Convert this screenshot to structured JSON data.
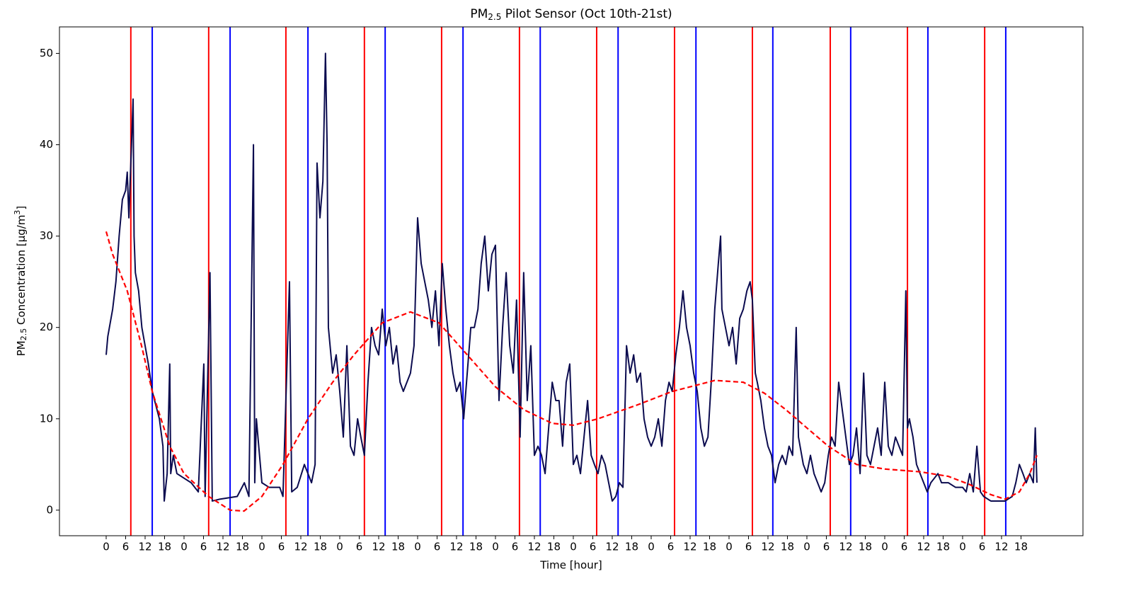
{
  "chart_data": {
    "type": "line",
    "title": [
      "PM",
      "2.5",
      " Pilot Sensor (Oct 10th-21st)"
    ],
    "x_label": "Time [hour]",
    "y_label": [
      "PM",
      "2.5",
      " Concentration [μg/m",
      "3",
      "]"
    ],
    "xlim": [
      -14.4,
      301.1
    ],
    "ylim": [
      -2.8,
      52.9
    ],
    "yticks": [
      0,
      10,
      20,
      30,
      40,
      50
    ],
    "xticks": [
      0,
      6,
      12,
      18,
      {
        "value": 24,
        "label": "0"
      },
      {
        "value": 30,
        "label": "6"
      },
      {
        "value": 36,
        "label": "12"
      },
      {
        "value": 42,
        "label": "18"
      },
      {
        "value": 48,
        "label": "0"
      },
      {
        "value": 54,
        "label": "6"
      },
      {
        "value": 60,
        "label": "12"
      },
      {
        "value": 66,
        "label": "18"
      },
      {
        "value": 72,
        "label": "0"
      },
      {
        "value": 78,
        "label": "6"
      },
      {
        "value": 84,
        "label": "12"
      },
      {
        "value": 90,
        "label": "18"
      },
      {
        "value": 96,
        "label": "0"
      },
      {
        "value": 102,
        "label": "6"
      },
      {
        "value": 108,
        "label": "12"
      },
      {
        "value": 114,
        "label": "18"
      },
      {
        "value": 120,
        "label": "0"
      },
      {
        "value": 126,
        "label": "6"
      },
      {
        "value": 132,
        "label": "12"
      },
      {
        "value": 138,
        "label": "18"
      },
      {
        "value": 144,
        "label": "0"
      },
      {
        "value": 150,
        "label": "6"
      },
      {
        "value": 156,
        "label": "12"
      },
      {
        "value": 162,
        "label": "18"
      },
      {
        "value": 168,
        "label": "0"
      },
      {
        "value": 174,
        "label": "6"
      },
      {
        "value": 180,
        "label": "12"
      },
      {
        "value": 186,
        "label": "18"
      },
      {
        "value": 192,
        "label": "0"
      },
      {
        "value": 198,
        "label": "6"
      },
      {
        "value": 204,
        "label": "12"
      },
      {
        "value": 210,
        "label": "18"
      },
      {
        "value": 216,
        "label": "0"
      },
      {
        "value": 222,
        "label": "6"
      },
      {
        "value": 228,
        "label": "12"
      },
      {
        "value": 234,
        "label": "18"
      },
      {
        "value": 240,
        "label": "0"
      },
      {
        "value": 246,
        "label": "6"
      },
      {
        "value": 252,
        "label": "12"
      },
      {
        "value": 258,
        "label": "18"
      },
      {
        "value": 264,
        "label": "0"
      },
      {
        "value": 270,
        "label": "6"
      },
      {
        "value": 276,
        "label": "12"
      },
      {
        "value": 282,
        "label": "18"
      }
    ],
    "grid": false,
    "vlines": [
      {
        "color": "#ff0000",
        "x": [
          7.6,
          31.6,
          55.4,
          79.6,
          103.4,
          127.4,
          151.2,
          175.2,
          199.2,
          223.2,
          247.0,
          270.8
        ]
      },
      {
        "color": "#0000ff",
        "x": [
          14.2,
          38.2,
          62.2,
          86.0,
          110.0,
          133.8,
          157.8,
          181.8,
          205.5,
          229.5,
          253.3,
          277.3
        ]
      }
    ],
    "series": [
      {
        "color": "#0b0b4f",
        "linestyle": "solid",
        "x": [
          0,
          0.5,
          1,
          2,
          3,
          4,
          5,
          6,
          6.5,
          7,
          7.6,
          8.3,
          8.6,
          9,
          10,
          11,
          12,
          13,
          14.2,
          16.4,
          17.5,
          17.9,
          18.8,
          19.6,
          19.9,
          20.7,
          21.8,
          24,
          26.2,
          28.4,
          30.1,
          30.5,
          32,
          32.7,
          35,
          40.4,
          42.6,
          44,
          45.4,
          45.8,
          46.3,
          48,
          50.2,
          53.5,
          54.5,
          56.5,
          57.2,
          58.9,
          61.1,
          63.3,
          64.4,
          65,
          65.9,
          66.8,
          67.6,
          68.1,
          68.5,
          69.8,
          70.9,
          72,
          73.1,
          74.2,
          75.3,
          76.4,
          77.5,
          78.5,
          79.6,
          80.7,
          81.8,
          82.9,
          84,
          85.1,
          86.2,
          87.3,
          88.4,
          89.5,
          90.6,
          91.6,
          92.7,
          93.8,
          94.9,
          96,
          97.1,
          98.2,
          99.3,
          100.4,
          101.5,
          102.6,
          103.6,
          104.7,
          105.8,
          106.9,
          108,
          109.1,
          110.2,
          111.3,
          112.4,
          113.5,
          114.6,
          115.6,
          116.7,
          117.8,
          118.9,
          120,
          121.1,
          122.2,
          123.3,
          124.4,
          125.5,
          126.5,
          127.6,
          128.7,
          129.8,
          130.9,
          132,
          133.1,
          134.2,
          135.3,
          136.4,
          137.5,
          138.6,
          139.6,
          140.7,
          141.8,
          142.9,
          144,
          145.1,
          146.2,
          147.3,
          148.4,
          149.5,
          150.5,
          151.6,
          152.7,
          153.8,
          154.9,
          156,
          157.1,
          158.2,
          159.3,
          160.4,
          161.5,
          162.6,
          163.6,
          164.7,
          165.8,
          166.9,
          168,
          169.1,
          170.2,
          171.3,
          172.4,
          173.5,
          174.5,
          175.6,
          176.7,
          177.8,
          178.9,
          180,
          181.1,
          182.2,
          183.3,
          184.4,
          185.5,
          186.5,
          187.6,
          188.7,
          189.4,
          189.8,
          190.9,
          192,
          193.1,
          194.2,
          195.3,
          196.4,
          197.5,
          198.5,
          199.2,
          200.1,
          200.7,
          201.8,
          202.9,
          204,
          205.1,
          206.2,
          207.3,
          208.4,
          209.5,
          210.5,
          211.6,
          212.7,
          213.4,
          214.9,
          216,
          217.1,
          218.2,
          219.3,
          220.4,
          221.5,
          222.6,
          223.6,
          224.7,
          225.8,
          226.9,
          228,
          229.1,
          230.2,
          231.3,
          232.4,
          233.5,
          234.5,
          235.6,
          236.7,
          237.8,
          238.9,
          240,
          241.1,
          242.2,
          243.3,
          244.4,
          245.5,
          246.5,
          247,
          247.6,
          248.7,
          249.8,
          250.9,
          252,
          253.1,
          254.2,
          255.3,
          256.4,
          257.5,
          259.6,
          261.8,
          264,
          265.1,
          266.2,
          267.3,
          268.4,
          269.5,
          270.5,
          272.7,
          274.9,
          277.1,
          279.3,
          280.4,
          281.5,
          282.6,
          283.6,
          284.7,
          285.8,
          286.4,
          286.9
        ],
        "values": [
          17,
          19,
          20,
          22,
          25,
          30,
          34,
          35,
          37,
          32,
          38,
          45,
          30,
          26,
          24,
          20,
          18,
          16,
          13,
          10,
          7,
          1,
          4,
          16,
          4,
          6,
          4,
          3.5,
          3,
          2,
          16,
          1.5,
          26,
          1,
          1.2,
          1.5,
          3,
          1.5,
          40,
          3,
          10,
          3,
          2.5,
          2.5,
          1.5,
          25,
          2,
          2.5,
          5,
          3,
          5,
          38,
          32,
          36,
          50,
          40,
          20,
          15,
          17,
          13,
          8,
          18,
          7,
          6,
          10,
          8,
          6,
          14,
          20,
          18,
          17,
          22,
          18,
          20,
          16,
          18,
          14,
          13,
          14,
          15,
          18,
          32,
          27,
          25,
          23,
          20,
          24,
          18,
          27,
          22,
          18,
          15,
          13,
          14,
          10,
          15,
          20,
          20,
          22,
          27,
          30,
          24,
          28,
          29,
          12,
          20,
          26,
          18,
          15,
          23,
          8,
          26,
          12,
          18,
          6,
          7,
          6,
          4,
          9,
          14,
          12,
          12,
          7,
          14,
          16,
          5,
          6,
          4,
          8,
          12,
          6,
          5,
          4,
          6,
          5,
          3,
          1,
          1.5,
          3,
          2.5,
          18,
          15,
          17,
          14,
          15,
          10,
          8,
          7,
          8,
          10,
          7,
          12,
          14,
          13,
          17,
          20,
          24,
          20,
          18,
          15,
          13,
          9,
          7,
          8,
          14,
          22,
          27,
          30,
          22,
          20,
          18,
          20,
          16,
          21,
          22,
          24,
          25,
          23,
          15,
          14,
          12,
          9,
          7,
          6,
          3,
          5,
          6,
          5,
          7,
          6,
          20,
          8,
          5,
          4,
          6,
          4,
          3,
          2,
          3,
          6,
          8,
          7,
          14,
          11,
          8,
          5,
          6,
          9,
          4,
          15,
          6,
          5,
          7,
          9,
          6,
          14,
          7,
          6,
          8,
          7,
          6,
          24,
          9,
          10,
          8,
          5,
          4,
          3,
          2,
          3,
          3.5,
          4,
          3,
          3,
          2.5,
          2.5,
          2,
          4,
          2,
          7,
          2,
          1.5,
          1,
          1,
          1,
          1.5,
          3,
          5,
          4,
          3,
          4,
          3,
          9,
          3
        ]
      },
      {
        "color": "#ff0000",
        "linestyle": "dashed",
        "x": [
          0,
          2,
          6.5,
          10.9,
          14.2,
          19.6,
          24,
          31.6,
          38.2,
          42.5,
          48,
          54.5,
          62.2,
          69.8,
          76.4,
          85.1,
          93.8,
          102.6,
          111.3,
          120,
          128.7,
          137.5,
          144,
          151.6,
          163.6,
          174.5,
          187.6,
          196.4,
          202.9,
          209.5,
          216,
          222.6,
          231.3,
          240,
          250.9,
          259.6,
          266.2,
          272.7,
          277.1,
          281.5,
          284.7,
          286.9
        ],
        "values": [
          30.5,
          28,
          24,
          18,
          13,
          7,
          4,
          1.5,
          0,
          -0.1,
          1.5,
          5,
          10,
          14,
          17,
          20.5,
          21.7,
          20.5,
          17,
          13.5,
          11,
          9.5,
          9.3,
          10,
          11.5,
          13,
          14.2,
          14,
          12.8,
          11,
          9,
          7,
          5,
          4.5,
          4.2,
          3.7,
          2.8,
          1.7,
          1.2,
          2,
          4,
          6
        ]
      }
    ]
  }
}
